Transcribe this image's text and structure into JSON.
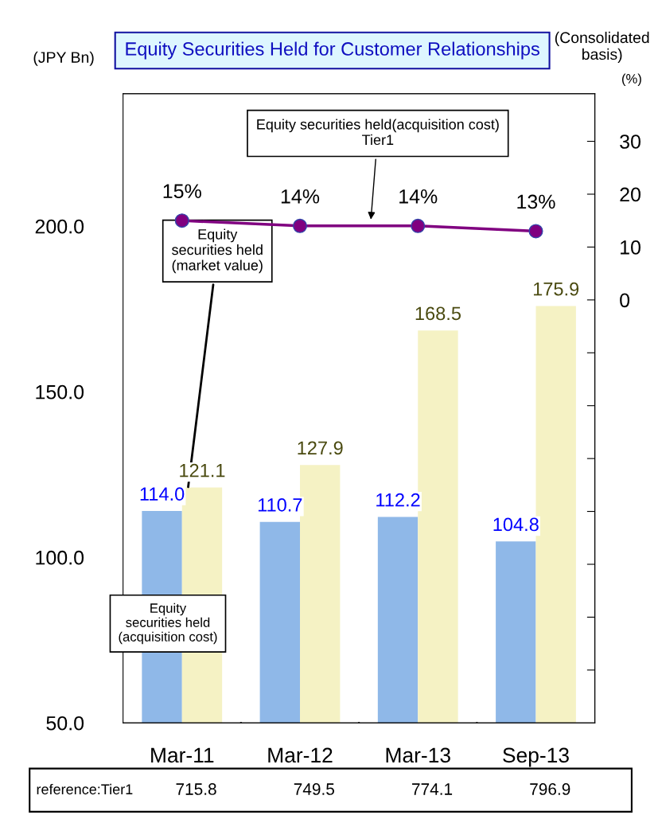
{
  "chart_data": {
    "type": "bar",
    "title": "Equity Securities Held for Customer Relationships",
    "ylabel": "(JPY Bn)",
    "y2label": "(%)",
    "annotations": [
      "(Consolidated basis)",
      "reference:Tier1",
      "715.8",
      "749.5",
      "774.1",
      "796.9"
    ],
    "categories": [
      "Mar-11",
      "Mar-12",
      "Mar-13",
      "Sep-13"
    ],
    "series": [
      {
        "name": "Equity securities held (acquisition cost)",
        "color": "#8fb8e8",
        "values": [
          114.0,
          110.7,
          112.2,
          104.8
        ],
        "value_labels": [
          "114.0",
          "110.7",
          "112.2",
          "104.8"
        ]
      },
      {
        "name": "Equity securities held (market value)",
        "color": "#f5f2c4",
        "values": [
          121.1,
          127.9,
          168.5,
          175.9
        ],
        "value_labels": [
          "121.1",
          "127.9",
          "168.5",
          "175.9"
        ]
      },
      {
        "name": "Equity securities held(acquisition cost) Tier1",
        "type": "line",
        "axis": "y2",
        "color": "#800080",
        "marker": "circle",
        "values": [
          15,
          14,
          14,
          13
        ],
        "value_labels": [
          "15%",
          "14%",
          "14%",
          "13%"
        ]
      }
    ],
    "ylim": [
      50,
      240
    ],
    "yticks": [
      {
        "value": 50,
        "label": "50.0"
      },
      {
        "value": 100,
        "label": "100.0"
      },
      {
        "value": 150,
        "label": "150.0"
      },
      {
        "value": 200,
        "label": "200.0"
      }
    ],
    "y2lim": [
      -80,
      39
    ],
    "y2ticks": [
      {
        "value": -70,
        "label": null
      },
      {
        "value": -60,
        "label": null
      },
      {
        "value": -50,
        "label": null
      },
      {
        "value": -40,
        "label": null
      },
      {
        "value": -30,
        "label": null
      },
      {
        "value": -20,
        "label": null
      },
      {
        "value": -10,
        "label": null
      },
      0,
      10,
      20,
      30
    ],
    "grid": false,
    "legend": false
  }
}
